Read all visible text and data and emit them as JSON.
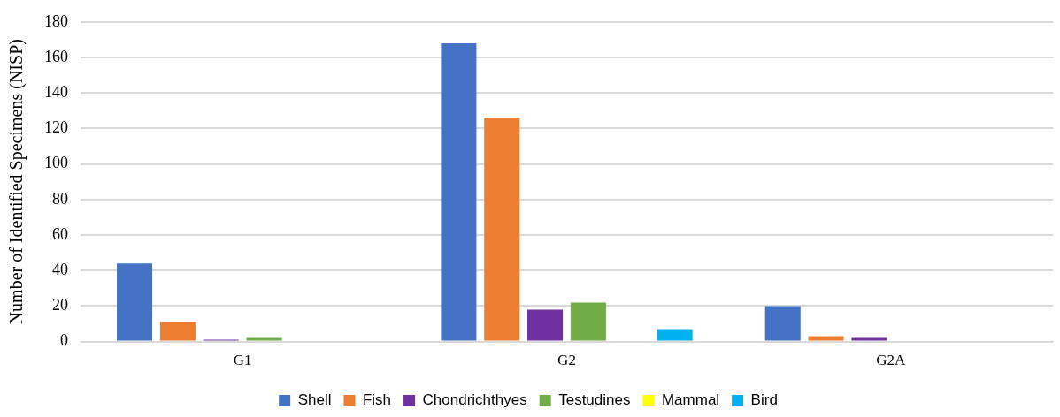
{
  "chart_data": {
    "type": "bar",
    "ylabel": "Number of Identified Specimens (NISP)",
    "categories": [
      "G1",
      "G2",
      "G2A"
    ],
    "series": [
      {
        "name": "Shell",
        "color": "#4472c4",
        "values": [
          44,
          168,
          20
        ]
      },
      {
        "name": "Fish",
        "color": "#ed7d31",
        "values": [
          11,
          126,
          3
        ]
      },
      {
        "name": "Chondrichthyes",
        "color": "#7030a0",
        "values": [
          1,
          18,
          2
        ]
      },
      {
        "name": "Testudines",
        "color": "#70ad47",
        "values": [
          2,
          22,
          0
        ]
      },
      {
        "name": "Mammal",
        "color": "#ffff00",
        "values": [
          0,
          0,
          0
        ]
      },
      {
        "name": "Bird",
        "color": "#00b0f0",
        "values": [
          0,
          7,
          0
        ]
      }
    ],
    "ylim": [
      0,
      180
    ],
    "yticks": [
      0,
      20,
      40,
      60,
      80,
      100,
      120,
      140,
      160,
      180
    ],
    "grid": "y",
    "legend": "bottom"
  }
}
